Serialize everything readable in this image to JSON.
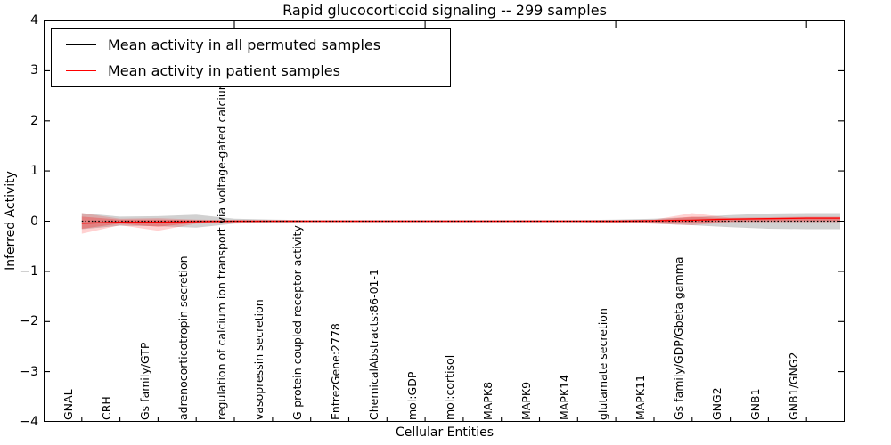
{
  "title": "Rapid glucocorticoid signaling -- 299 samples",
  "axes": {
    "ylabel": "Inferred Activity",
    "xlabel": "Cellular Entities",
    "yticks": [
      4,
      3,
      2,
      1,
      0,
      -1,
      -2,
      -3,
      -4
    ],
    "ytick_labels": [
      "4",
      "3",
      "2",
      "1",
      "0",
      "−1",
      "−2",
      "−3",
      "−4"
    ]
  },
  "legend": {
    "entries": [
      {
        "label": "Mean activity in all permuted samples",
        "color": "#000000"
      },
      {
        "label": "Mean activity in patient samples",
        "color": "#ff0000"
      }
    ]
  },
  "chart_data": {
    "type": "line",
    "title": "Rapid glucocorticoid signaling -- 299 samples",
    "xlabel": "Cellular Entities",
    "ylabel": "Inferred Activity",
    "ylim": [
      -4,
      4
    ],
    "grid": false,
    "legend_position": "upper left",
    "categories": [
      "GNAL",
      "CRH",
      "Gs family/GTP",
      "adrenocorticotropin secretion",
      "regulation of calcium ion transport via voltage-gated calcium channel",
      "vasopressin secretion",
      "G-protein coupled receptor activity",
      "EntrezGene:2778",
      "ChemicalAbstracts:86-01-1",
      "mol:GDP",
      "mol:cortisol",
      "MAPK8",
      "MAPK9",
      "MAPK14",
      "glutamate secretion",
      "MAPK11",
      "Gs family/GDP/Gbeta gamma",
      "GNG2",
      "GNB1",
      "GNB1/GNG2"
    ],
    "series": [
      {
        "name": "Mean activity in all permuted samples",
        "color": "#000000",
        "style": "dotted",
        "values": [
          0,
          0,
          0,
          0,
          0,
          0,
          0,
          0,
          0,
          0,
          0,
          0,
          0,
          0,
          0,
          0,
          0,
          0,
          0,
          0
        ]
      },
      {
        "name": "Mean activity in patient samples",
        "color": "#ff0000",
        "style": "solid",
        "values": [
          -0.04,
          -0.02,
          -0.02,
          -0.01,
          0,
          0,
          0,
          0,
          0,
          0,
          0,
          0,
          0,
          0,
          0,
          0.01,
          0.02,
          0.04,
          0.05,
          0.06
        ]
      }
    ],
    "bands": [
      {
        "name": "permuted-samples-range",
        "color": "rgba(90,90,90,0.28)",
        "upper": [
          0.16,
          0.09,
          0.1,
          0.13,
          0.05,
          0.03,
          0.02,
          0.02,
          0.02,
          0.02,
          0.02,
          0.02,
          0.02,
          0.02,
          0.03,
          0.05,
          0.08,
          0.12,
          0.15,
          0.16
        ],
        "lower": [
          -0.16,
          -0.09,
          -0.1,
          -0.13,
          -0.05,
          -0.03,
          -0.02,
          -0.02,
          -0.02,
          -0.02,
          -0.02,
          -0.02,
          -0.02,
          -0.02,
          -0.03,
          -0.05,
          -0.08,
          -0.12,
          -0.15,
          -0.16
        ]
      },
      {
        "name": "patient-samples-range-outer",
        "color": "rgba(255,0,0,0.18)",
        "upper": [
          0.16,
          0.05,
          0.06,
          0.03,
          0.02,
          0.015,
          0.015,
          0.015,
          0.015,
          0.015,
          0.015,
          0.015,
          0.015,
          0.015,
          0.02,
          0.03,
          0.16,
          0.07,
          0.08,
          0.09
        ],
        "lower": [
          -0.25,
          -0.08,
          -0.19,
          -0.05,
          -0.03,
          -0.02,
          -0.02,
          -0.02,
          -0.02,
          -0.02,
          -0.02,
          -0.02,
          -0.02,
          -0.02,
          -0.03,
          -0.05,
          -0.08,
          -0.02,
          -0.02,
          -0.02
        ]
      },
      {
        "name": "patient-samples-range-inner",
        "color": "rgba(255,0,0,0.25)",
        "upper": [
          0.09,
          0.03,
          0.03,
          0.02,
          0.01,
          0.01,
          0.01,
          0.01,
          0.01,
          0.01,
          0.01,
          0.01,
          0.01,
          0.01,
          0.015,
          0.02,
          0.09,
          0.05,
          0.06,
          0.07
        ],
        "lower": [
          -0.15,
          -0.05,
          -0.11,
          -0.03,
          -0.02,
          -0.01,
          -0.01,
          -0.01,
          -0.01,
          -0.01,
          -0.01,
          -0.01,
          -0.01,
          -0.01,
          -0.02,
          -0.03,
          -0.04,
          -0.01,
          -0.005,
          0
        ]
      }
    ]
  }
}
